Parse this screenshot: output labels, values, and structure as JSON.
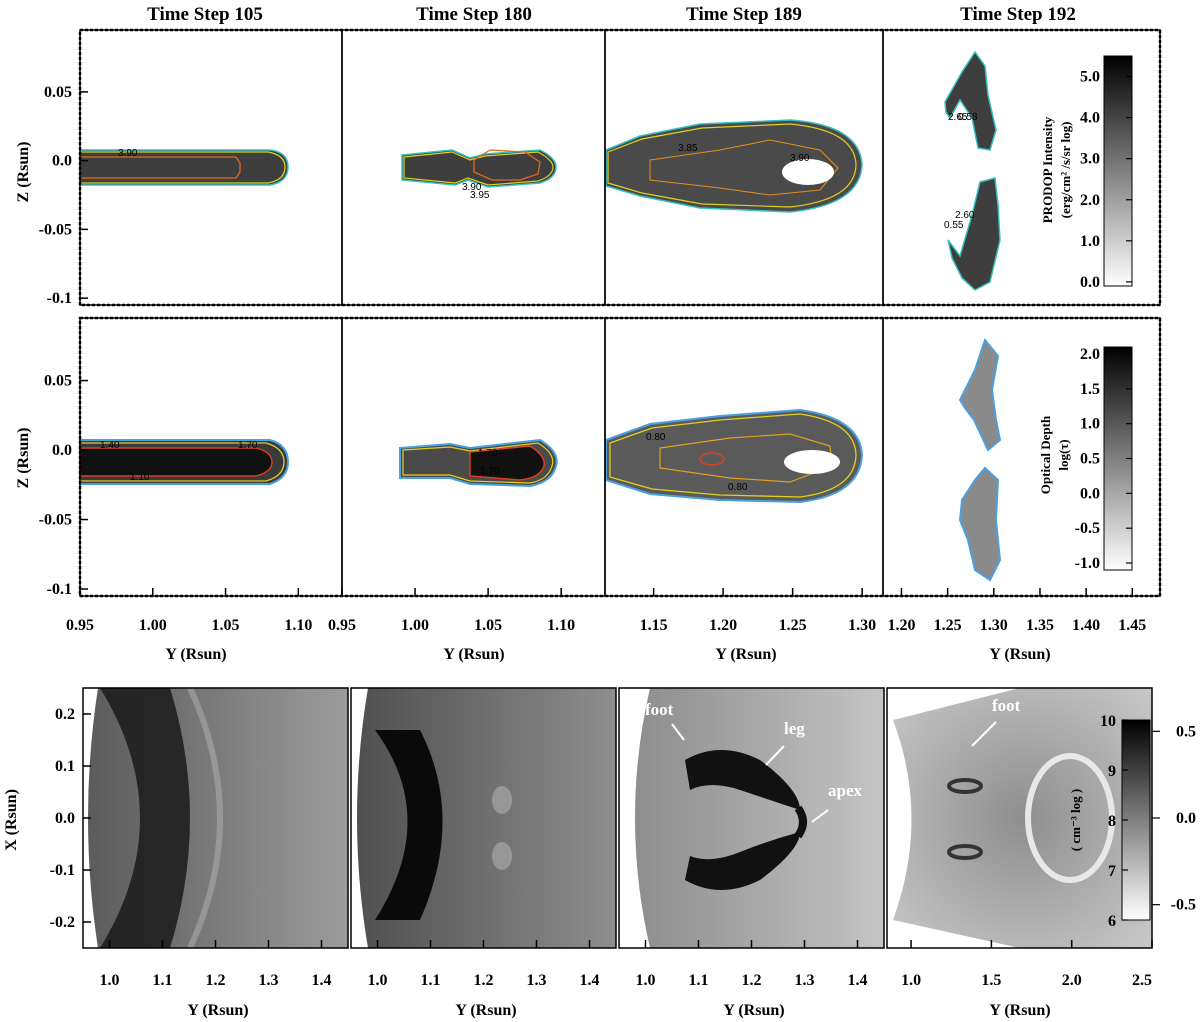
{
  "chart_data": [
    {
      "type": "heatmap",
      "row": "intensity",
      "column_titles": [
        "Time Step 105",
        "Time Step 180",
        "Time Step 189",
        "Time Step 192"
      ],
      "ylabel": "Z (Rsun)",
      "yticks": [
        "0.05",
        "0.0",
        "-0.05",
        "-0.1"
      ],
      "colorbar": {
        "title_line1": "PRODOP Intensity",
        "title_line2": "(erg/cm² /s/sr log)",
        "ticks": [
          "5.0",
          "4.0",
          "3.0",
          "2.0",
          "1.0",
          "0.0"
        ],
        "range": [
          -0.1,
          5.5
        ]
      },
      "contour_labels": {
        "panel_189": [
          "3.85",
          "3.90"
        ],
        "panel_180": [
          "3.90",
          "3.95"
        ],
        "panel_192": [
          "0.55",
          "0.58",
          "2.65",
          "2.60"
        ]
      }
    },
    {
      "type": "heatmap",
      "row": "optical_depth",
      "ylabel": "Z (Rsun)",
      "yticks": [
        "0.05",
        "0.0",
        "-0.05",
        "-0.1"
      ],
      "xlabel": "Y (Rsun)",
      "xticks": [
        [
          "0.95",
          "1.00",
          "1.05",
          "1.10"
        ],
        [
          "0.95",
          "1.00",
          "1.05",
          "1.10"
        ],
        [
          "1.15",
          "1.20",
          "1.25",
          "1.30"
        ],
        [
          "1.20",
          "1.25",
          "1.30",
          "1.35",
          "1.40",
          "1.45"
        ]
      ],
      "colorbar": {
        "title_line1": "Optical Depth",
        "title_line2": "log(τ)",
        "ticks": [
          "2.0",
          "1.5",
          "1.0",
          "0.5",
          "0.0",
          "-0.5",
          "-1.0"
        ],
        "range": [
          -1.1,
          2.1
        ]
      },
      "contour_labels": {
        "panel_105": [
          "1.40",
          "1.10",
          "1.70"
        ],
        "panel_180": [
          "1.70",
          "1.70"
        ],
        "panel_189": [
          "0.80",
          "0.80"
        ]
      }
    },
    {
      "type": "heatmap",
      "row": "density",
      "ylabel": "X (Rsun)",
      "yticks": [
        "0.2",
        "0.1",
        "0.0",
        "-0.1",
        "-0.2"
      ],
      "xlabel": "Y (Rsun)",
      "xticks": [
        [
          "1.0",
          "1.1",
          "1.2",
          "1.3",
          "1.4"
        ],
        [
          "1.0",
          "1.1",
          "1.2",
          "1.3",
          "1.4"
        ],
        [
          "1.0",
          "1.1",
          "1.2",
          "1.3",
          "1.4"
        ],
        [
          "1.0",
          "1.5",
          "2.0",
          "2.5"
        ]
      ],
      "annotations": [
        "foot",
        "leg",
        "apex",
        "foot"
      ],
      "colorbar": {
        "title": "( cm⁻³ log )",
        "left_ticks": [
          "10",
          "9",
          "8",
          "7",
          "6"
        ],
        "right_ticks": [
          "0.5",
          "0.0",
          "-0.5"
        ],
        "range": [
          6,
          10
        ]
      }
    }
  ]
}
